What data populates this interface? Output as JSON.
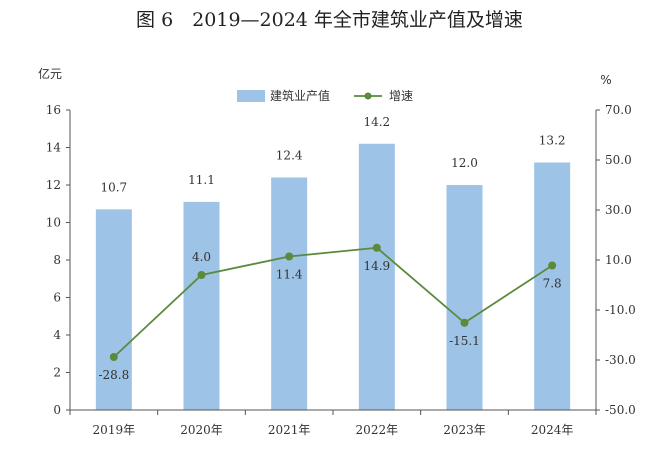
{
  "figure_title": "图 6　2019—2024 年全市建筑业产值及增速",
  "chart_data": {
    "type": "bar",
    "categories": [
      "2019年",
      "2020年",
      "2021年",
      "2022年",
      "2023年",
      "2024年"
    ],
    "series": [
      {
        "name": "建筑业产值",
        "type": "bar",
        "axis": "left",
        "values": [
          10.7,
          11.1,
          12.4,
          14.2,
          12.0,
          13.2
        ],
        "labels": [
          "10.7",
          "11.1",
          "12.4",
          "14.2",
          "12.0",
          "13.2"
        ]
      },
      {
        "name": "增速",
        "type": "line",
        "axis": "right",
        "values": [
          -28.8,
          4.0,
          11.4,
          14.9,
          -15.1,
          7.8
        ],
        "labels": [
          "-28.8",
          "4.0",
          "11.4",
          "14.9",
          "-15.1",
          "7.8"
        ]
      }
    ],
    "left_axis": {
      "unit": "亿元",
      "ylim": [
        0,
        16
      ],
      "ticks": [
        "0",
        "2",
        "4",
        "6",
        "8",
        "10",
        "12",
        "14",
        "16"
      ]
    },
    "right_axis": {
      "unit": "%",
      "ylim": [
        -50,
        70
      ],
      "ticks": [
        "-50.0",
        "-30.0",
        "-10.0",
        "10.0",
        "30.0",
        "50.0",
        "70.0"
      ]
    },
    "grid": false,
    "legend_position": "top-center",
    "colors": {
      "bar": "#9dc3e6",
      "line": "#5b8a3c",
      "axis": "#555555"
    }
  }
}
